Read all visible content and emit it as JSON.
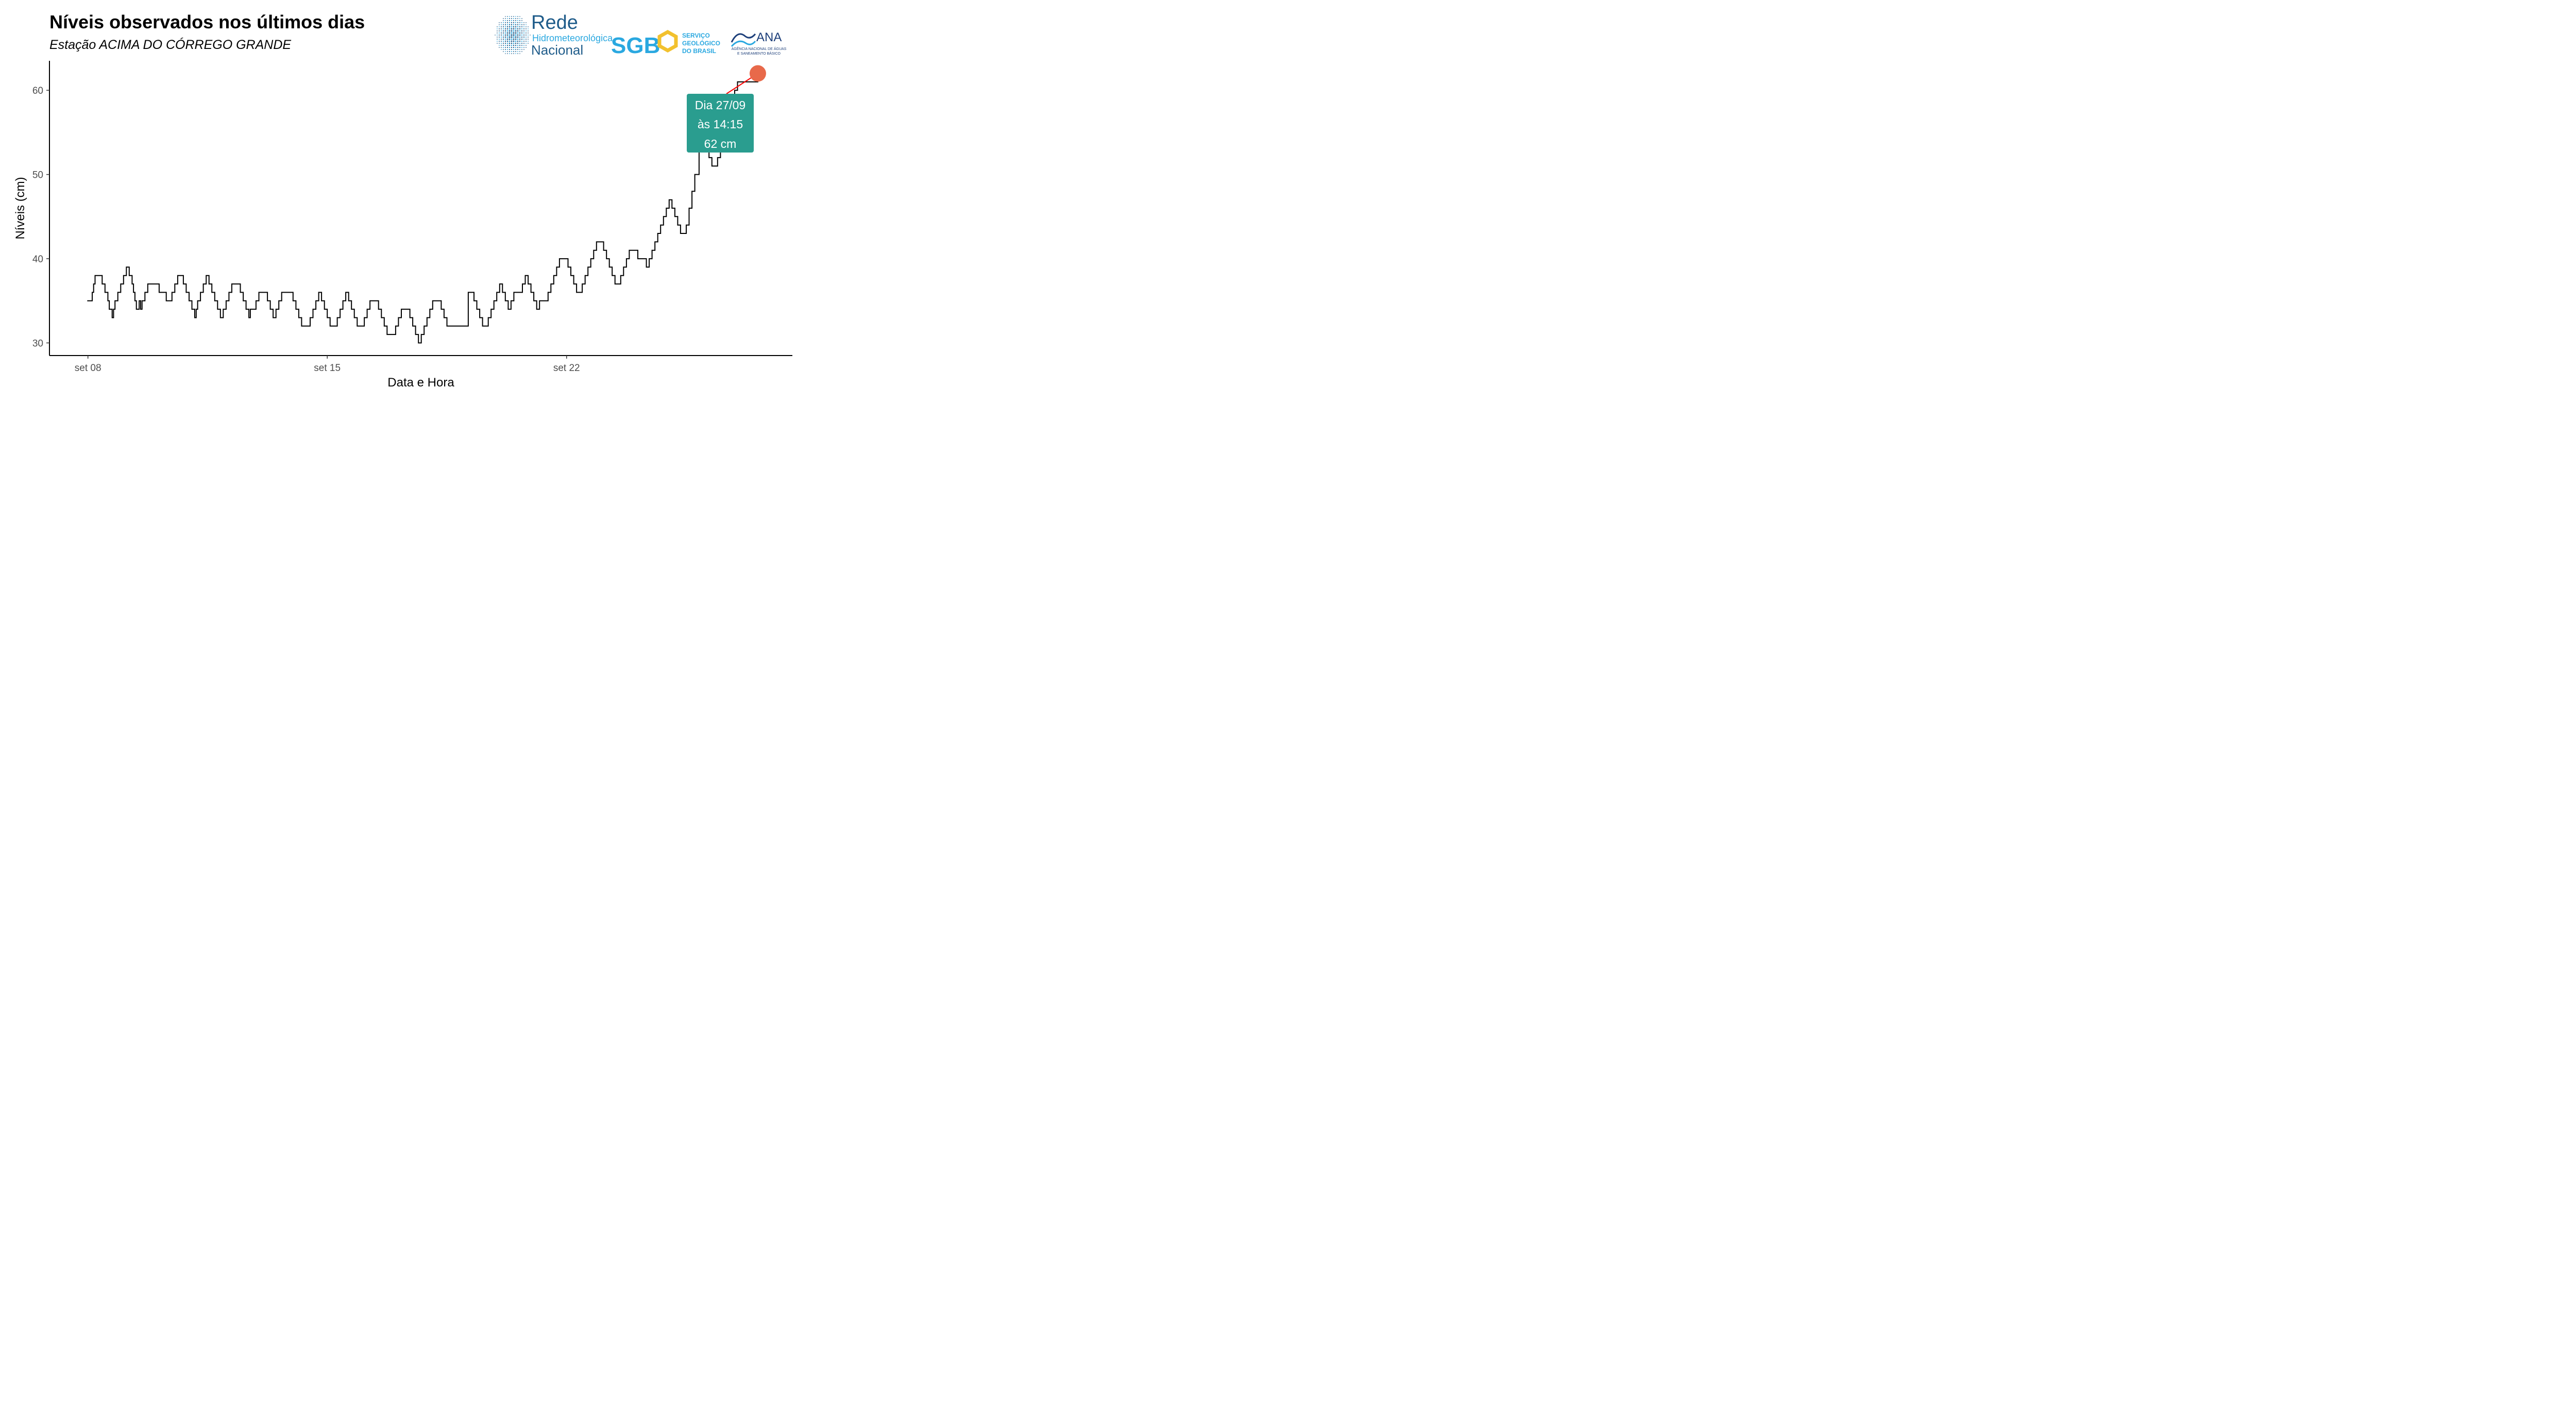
{
  "header": {
    "title": "Níveis observados nos últimos dias",
    "subtitle": "Estação ACIMA DO CÓRREGO GRANDE"
  },
  "logos": {
    "rede": {
      "line1": "Rede",
      "line2": "Hidrometeorológica",
      "line3": "Nacional"
    },
    "sgb": {
      "mark": "SGB",
      "line1": "SERVIÇO",
      "line2": "GEOLÓGICO",
      "line3": "DO BRASIL"
    },
    "ana": {
      "mark": "ANA",
      "line1": "AGÊNCIA NACIONAL DE ÁGUAS",
      "line2": "E SANEAMENTO BÁSICO"
    }
  },
  "colors": {
    "line": "#000000",
    "highlight_point": "#e8694a",
    "leader_line": "#ff0000",
    "annotation_bg": "#2a9d8f",
    "annotation_text": "#ffffff",
    "rede_blue": "#1f5c8a",
    "sgb_blue": "#2aa8e0",
    "sgb_yellow": "#f2c12e",
    "ana_navy": "#1d3f7a"
  },
  "chart_data": {
    "type": "line",
    "title": "Níveis observados nos últimos dias",
    "subtitle": "Estação ACIMA DO CÓRREGO GRANDE",
    "xlabel": "Data e Hora",
    "ylabel": "Níveis (cm)",
    "x_ticks": [
      {
        "x": "2024-09-08T00:00",
        "label": "set 08"
      },
      {
        "x": "2024-09-15T00:00",
        "label": "set 15"
      },
      {
        "x": "2024-09-22T00:00",
        "label": "set 22"
      }
    ],
    "y_ticks": [
      30,
      40,
      50,
      60
    ],
    "xlim": [
      "2024-09-06T21:00",
      "2024-09-28T14:30"
    ],
    "ylim": [
      28.5,
      63.5
    ],
    "grid": false,
    "series": [
      {
        "points": [
          [
            "2024-09-07T23:30",
            35
          ],
          [
            "2024-09-08T00:00",
            35
          ],
          [
            "2024-09-08T02:00",
            35
          ],
          [
            "2024-09-08T03:00",
            36
          ],
          [
            "2024-09-08T04:00",
            37
          ],
          [
            "2024-09-08T05:00",
            38
          ],
          [
            "2024-09-08T07:00",
            38
          ],
          [
            "2024-09-08T08:00",
            38
          ],
          [
            "2024-09-08T10:00",
            37
          ],
          [
            "2024-09-08T12:00",
            36
          ],
          [
            "2024-09-08T14:00",
            35
          ],
          [
            "2024-09-08T15:00",
            34
          ],
          [
            "2024-09-08T17:00",
            33
          ],
          [
            "2024-09-08T18:00",
            34
          ],
          [
            "2024-09-08T19:00",
            35
          ],
          [
            "2024-09-08T21:00",
            36
          ],
          [
            "2024-09-08T23:00",
            37
          ],
          [
            "2024-09-09T01:00",
            38
          ],
          [
            "2024-09-09T03:00",
            39
          ],
          [
            "2024-09-09T05:00",
            38
          ],
          [
            "2024-09-09T07:00",
            37
          ],
          [
            "2024-09-09T08:00",
            36
          ],
          [
            "2024-09-09T09:00",
            35
          ],
          [
            "2024-09-09T10:00",
            34
          ],
          [
            "2024-09-09T12:00",
            35
          ],
          [
            "2024-09-09T13:00",
            34
          ],
          [
            "2024-09-09T14:00",
            35
          ],
          [
            "2024-09-09T16:00",
            36
          ],
          [
            "2024-09-09T18:00",
            37
          ],
          [
            "2024-09-09T22:00",
            37
          ],
          [
            "2024-09-10T02:00",
            36
          ],
          [
            "2024-09-10T05:00",
            36
          ],
          [
            "2024-09-10T07:00",
            35
          ],
          [
            "2024-09-10T09:00",
            35
          ],
          [
            "2024-09-10T11:00",
            36
          ],
          [
            "2024-09-10T13:00",
            37
          ],
          [
            "2024-09-10T15:00",
            38
          ],
          [
            "2024-09-10T18:00",
            38
          ],
          [
            "2024-09-10T19:00",
            37
          ],
          [
            "2024-09-10T21:00",
            36
          ],
          [
            "2024-09-10T23:00",
            35
          ],
          [
            "2024-09-11T01:00",
            34
          ],
          [
            "2024-09-11T03:00",
            33
          ],
          [
            "2024-09-11T04:00",
            34
          ],
          [
            "2024-09-11T05:00",
            35
          ],
          [
            "2024-09-11T07:00",
            36
          ],
          [
            "2024-09-11T09:00",
            37
          ],
          [
            "2024-09-11T11:00",
            38
          ],
          [
            "2024-09-11T13:00",
            37
          ],
          [
            "2024-09-11T15:00",
            36
          ],
          [
            "2024-09-11T17:00",
            35
          ],
          [
            "2024-09-11T19:00",
            34
          ],
          [
            "2024-09-11T21:00",
            33
          ],
          [
            "2024-09-11T23:00",
            34
          ],
          [
            "2024-09-12T01:00",
            35
          ],
          [
            "2024-09-12T03:00",
            36
          ],
          [
            "2024-09-12T05:00",
            37
          ],
          [
            "2024-09-12T09:00",
            37
          ],
          [
            "2024-09-12T11:00",
            36
          ],
          [
            "2024-09-12T13:00",
            35
          ],
          [
            "2024-09-12T15:00",
            34
          ],
          [
            "2024-09-12T17:00",
            33
          ],
          [
            "2024-09-12T18:00",
            34
          ],
          [
            "2024-09-12T20:00",
            34
          ],
          [
            "2024-09-12T22:00",
            35
          ],
          [
            "2024-09-13T00:00",
            36
          ],
          [
            "2024-09-13T04:00",
            36
          ],
          [
            "2024-09-13T06:00",
            35
          ],
          [
            "2024-09-13T08:00",
            34
          ],
          [
            "2024-09-13T10:00",
            33
          ],
          [
            "2024-09-13T12:00",
            34
          ],
          [
            "2024-09-13T14:00",
            35
          ],
          [
            "2024-09-13T16:00",
            36
          ],
          [
            "2024-09-13T22:00",
            36
          ],
          [
            "2024-09-14T00:00",
            35
          ],
          [
            "2024-09-14T02:00",
            34
          ],
          [
            "2024-09-14T04:00",
            33
          ],
          [
            "2024-09-14T06:00",
            32
          ],
          [
            "2024-09-14T10:00",
            32
          ],
          [
            "2024-09-14T12:00",
            33
          ],
          [
            "2024-09-14T14:00",
            34
          ],
          [
            "2024-09-14T16:00",
            35
          ],
          [
            "2024-09-14T18:00",
            36
          ],
          [
            "2024-09-14T20:00",
            35
          ],
          [
            "2024-09-14T22:00",
            34
          ],
          [
            "2024-09-15T00:00",
            33
          ],
          [
            "2024-09-15T02:00",
            32
          ],
          [
            "2024-09-15T05:00",
            32
          ],
          [
            "2024-09-15T07:00",
            33
          ],
          [
            "2024-09-15T09:00",
            34
          ],
          [
            "2024-09-15T11:00",
            35
          ],
          [
            "2024-09-15T13:00",
            36
          ],
          [
            "2024-09-15T15:00",
            35
          ],
          [
            "2024-09-15T17:00",
            34
          ],
          [
            "2024-09-15T19:00",
            33
          ],
          [
            "2024-09-15T21:00",
            32
          ],
          [
            "2024-09-16T00:00",
            32
          ],
          [
            "2024-09-16T02:00",
            33
          ],
          [
            "2024-09-16T04:00",
            34
          ],
          [
            "2024-09-16T06:00",
            35
          ],
          [
            "2024-09-16T10:00",
            35
          ],
          [
            "2024-09-16T12:00",
            34
          ],
          [
            "2024-09-16T14:00",
            33
          ],
          [
            "2024-09-16T16:00",
            32
          ],
          [
            "2024-09-16T18:00",
            31
          ],
          [
            "2024-09-16T22:00",
            31
          ],
          [
            "2024-09-17T00:00",
            32
          ],
          [
            "2024-09-17T02:00",
            33
          ],
          [
            "2024-09-17T04:00",
            34
          ],
          [
            "2024-09-17T08:00",
            34
          ],
          [
            "2024-09-17T10:00",
            33
          ],
          [
            "2024-09-17T12:00",
            32
          ],
          [
            "2024-09-17T14:00",
            31
          ],
          [
            "2024-09-17T16:00",
            30
          ],
          [
            "2024-09-17T18:00",
            31
          ],
          [
            "2024-09-17T20:00",
            32
          ],
          [
            "2024-09-17T22:00",
            33
          ],
          [
            "2024-09-18T00:00",
            34
          ],
          [
            "2024-09-18T02:00",
            35
          ],
          [
            "2024-09-18T06:00",
            35
          ],
          [
            "2024-09-18T08:00",
            34
          ],
          [
            "2024-09-18T10:00",
            33
          ],
          [
            "2024-09-18T12:00",
            32
          ],
          [
            "2024-09-18T16:00",
            32
          ],
          [
            "2024-09-19T03:00",
            36
          ],
          [
            "2024-09-19T05:00",
            36
          ],
          [
            "2024-09-19T07:00",
            35
          ],
          [
            "2024-09-19T09:00",
            34
          ],
          [
            "2024-09-19T11:00",
            33
          ],
          [
            "2024-09-19T13:00",
            32
          ],
          [
            "2024-09-19T15:00",
            32
          ],
          [
            "2024-09-19T17:00",
            33
          ],
          [
            "2024-09-19T19:00",
            34
          ],
          [
            "2024-09-19T21:00",
            35
          ],
          [
            "2024-09-19T23:00",
            36
          ],
          [
            "2024-09-20T01:00",
            37
          ],
          [
            "2024-09-20T03:00",
            36
          ],
          [
            "2024-09-20T05:00",
            35
          ],
          [
            "2024-09-20T07:00",
            34
          ],
          [
            "2024-09-20T09:00",
            35
          ],
          [
            "2024-09-20T11:00",
            36
          ],
          [
            "2024-09-20T15:00",
            36
          ],
          [
            "2024-09-20T17:00",
            37
          ],
          [
            "2024-09-20T19:00",
            38
          ],
          [
            "2024-09-20T21:00",
            37
          ],
          [
            "2024-09-20T23:00",
            36
          ],
          [
            "2024-09-21T01:00",
            35
          ],
          [
            "2024-09-21T03:00",
            34
          ],
          [
            "2024-09-21T05:00",
            35
          ],
          [
            "2024-09-21T09:00",
            35
          ],
          [
            "2024-09-21T11:00",
            36
          ],
          [
            "2024-09-21T13:00",
            37
          ],
          [
            "2024-09-21T15:00",
            38
          ],
          [
            "2024-09-21T17:00",
            39
          ],
          [
            "2024-09-21T19:00",
            40
          ],
          [
            "2024-09-21T23:00",
            40
          ],
          [
            "2024-09-22T01:00",
            39
          ],
          [
            "2024-09-22T03:00",
            38
          ],
          [
            "2024-09-22T05:00",
            37
          ],
          [
            "2024-09-22T07:00",
            36
          ],
          [
            "2024-09-22T09:00",
            36
          ],
          [
            "2024-09-22T11:00",
            37
          ],
          [
            "2024-09-22T13:00",
            38
          ],
          [
            "2024-09-22T15:00",
            39
          ],
          [
            "2024-09-22T17:00",
            40
          ],
          [
            "2024-09-22T19:00",
            41
          ],
          [
            "2024-09-22T21:00",
            42
          ],
          [
            "2024-09-23T00:00",
            42
          ],
          [
            "2024-09-23T02:00",
            41
          ],
          [
            "2024-09-23T04:00",
            40
          ],
          [
            "2024-09-23T06:00",
            39
          ],
          [
            "2024-09-23T08:00",
            38
          ],
          [
            "2024-09-23T10:00",
            37
          ],
          [
            "2024-09-23T12:00",
            37
          ],
          [
            "2024-09-23T14:00",
            38
          ],
          [
            "2024-09-23T16:00",
            39
          ],
          [
            "2024-09-23T18:00",
            40
          ],
          [
            "2024-09-23T20:00",
            41
          ],
          [
            "2024-09-24T00:00",
            41
          ],
          [
            "2024-09-24T02:00",
            40
          ],
          [
            "2024-09-24T06:00",
            40
          ],
          [
            "2024-09-24T08:00",
            39
          ],
          [
            "2024-09-24T10:00",
            40
          ],
          [
            "2024-09-24T12:00",
            41
          ],
          [
            "2024-09-24T14:00",
            42
          ],
          [
            "2024-09-24T16:00",
            43
          ],
          [
            "2024-09-24T18:00",
            44
          ],
          [
            "2024-09-24T20:00",
            45
          ],
          [
            "2024-09-24T22:00",
            46
          ],
          [
            "2024-09-25T00:00",
            47
          ],
          [
            "2024-09-25T02:00",
            46
          ],
          [
            "2024-09-25T04:00",
            45
          ],
          [
            "2024-09-25T06:00",
            44
          ],
          [
            "2024-09-25T08:00",
            43
          ],
          [
            "2024-09-25T10:00",
            43
          ],
          [
            "2024-09-25T12:00",
            44
          ],
          [
            "2024-09-25T14:00",
            46
          ],
          [
            "2024-09-25T16:00",
            48
          ],
          [
            "2024-09-25T18:00",
            50
          ],
          [
            "2024-09-25T21:00",
            55
          ],
          [
            "2024-09-26T00:00",
            56
          ],
          [
            "2024-09-26T02:00",
            53
          ],
          [
            "2024-09-26T04:00",
            52
          ],
          [
            "2024-09-26T06:00",
            51
          ],
          [
            "2024-09-26T08:00",
            51
          ],
          [
            "2024-09-26T10:00",
            52
          ],
          [
            "2024-09-26T12:00",
            53
          ],
          [
            "2024-09-26T14:00",
            54
          ],
          [
            "2024-09-26T16:00",
            56
          ],
          [
            "2024-09-26T18:00",
            58
          ],
          [
            "2024-09-26T20:00",
            59
          ],
          [
            "2024-09-26T22:00",
            60
          ],
          [
            "2024-09-27T00:00",
            61
          ],
          [
            "2024-09-27T05:00",
            61
          ],
          [
            "2024-09-27T14:15",
            62
          ]
        ]
      }
    ],
    "highlight": {
      "x": "2024-09-27T14:15",
      "y": 62
    },
    "annotation": {
      "line1": "Dia 27/09",
      "line2": "às 14:15",
      "line3": "62 cm"
    }
  }
}
